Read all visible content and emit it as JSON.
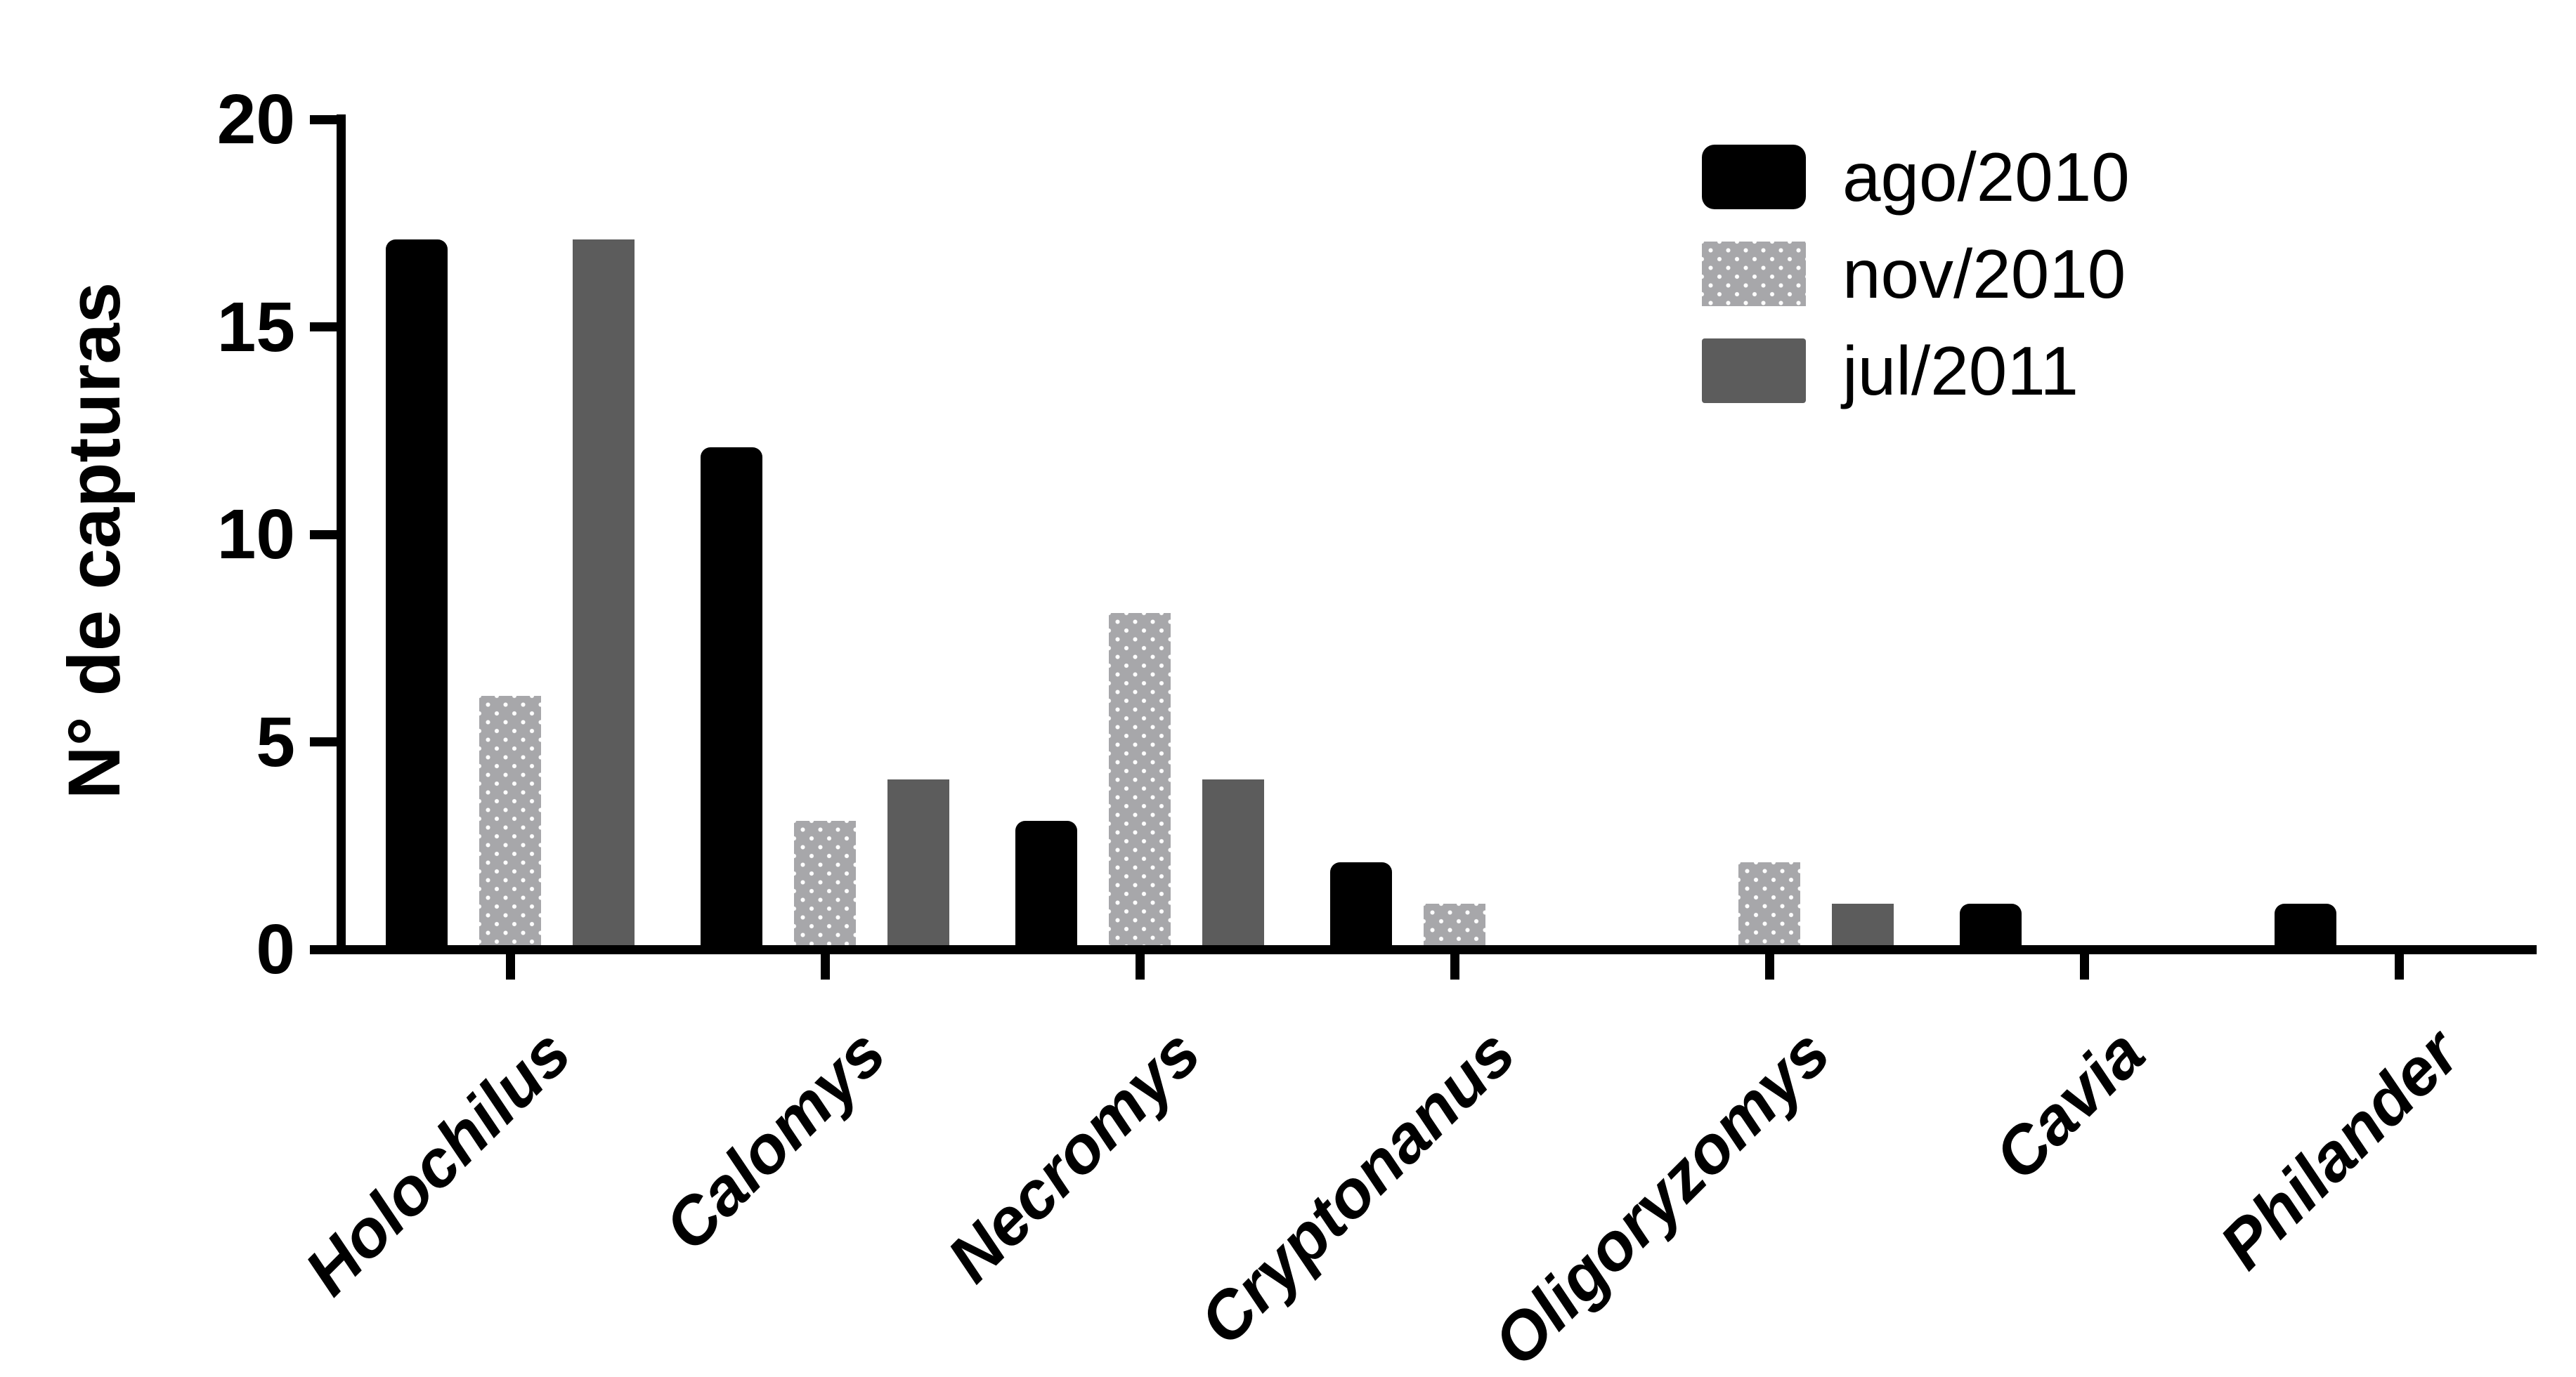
{
  "chart_data": {
    "type": "bar",
    "title": "",
    "ylabel": "N° de capturas",
    "xlabel": "",
    "ylim": [
      0,
      20
    ],
    "yticks": [
      0,
      5,
      10,
      15,
      20
    ],
    "grid": false,
    "legend_position": "top-right",
    "categories": [
      "Holochilus",
      "Calomys",
      "Necromys",
      "Cryptonanus",
      "Oligoryzomys",
      "Cavia",
      "Philander"
    ],
    "series": [
      {
        "name": "ago/2010",
        "style": "solid-black",
        "color": "#000000",
        "values": [
          17,
          12,
          3,
          2,
          0,
          1,
          1
        ]
      },
      {
        "name": "nov/2010",
        "style": "dotted-gray",
        "color": "#a7a7aa",
        "dot_color": "#ffffff",
        "values": [
          6,
          3,
          8,
          1,
          2,
          0,
          0
        ]
      },
      {
        "name": "jul/2011",
        "style": "solid-gray",
        "color": "#5c5c5c",
        "values": [
          17,
          4,
          4,
          0,
          1,
          0,
          0
        ]
      }
    ]
  },
  "colors": {
    "background": "#ffffff",
    "axis": "#000000",
    "text": "#000000"
  }
}
